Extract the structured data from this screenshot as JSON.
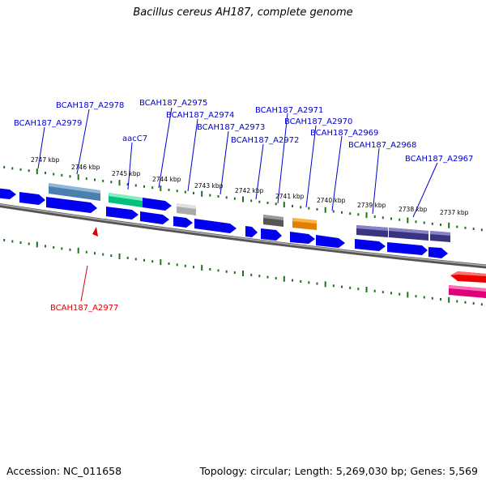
{
  "title": "Bacillus cereus AH187, complete genome",
  "footer": {
    "accession": "Accession: NC_011658",
    "topology": "Topology: circular; Length: 5,269,030 bp; Genes: 5,569"
  },
  "colors": {
    "label_blue": "#0000cc",
    "label_red": "#dd0000",
    "cds_blue": "#0000ee",
    "tick_green": "#207020",
    "backbone": "#808080"
  },
  "ticks": [
    "2747 kbp",
    "2746 kbp",
    "2745 kbp",
    "2744 kbp",
    "2743 kbp",
    "2742 kbp",
    "2741 kbp",
    "2740 kbp",
    "2739 kbp",
    "2738 kbp",
    "2737 kbp"
  ],
  "gene_labels": [
    "BCAH187_A2978",
    "BCAH187_A2979",
    "BCAH187_A2975",
    "BCAH187_A2974",
    "BCAH187_A2973",
    "aacC7",
    "BCAH187_A2971",
    "BCAH187_A2970",
    "BCAH187_A2969",
    "BCAH187_A2972",
    "BCAH187_A2968",
    "BCAH187_A2967",
    "BCAH187_A2977"
  ]
}
